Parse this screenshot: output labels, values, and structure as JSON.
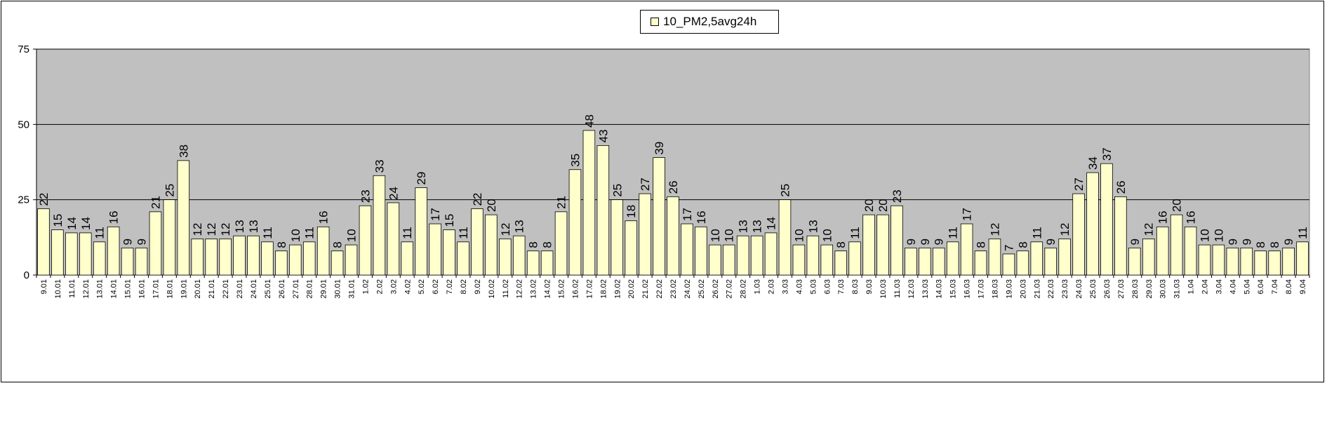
{
  "chart_data": {
    "type": "bar",
    "title": "",
    "xlabel": "",
    "ylabel": "",
    "ylim": [
      0,
      75
    ],
    "yticks": [
      0,
      25,
      50,
      75
    ],
    "grid": true,
    "legend": "top-center",
    "colors": {
      "bar_fill": "#FFFFCC",
      "bar_stroke": "#000000",
      "plot_bg": "#C0C0C0",
      "gridline": "#000000"
    },
    "series": [
      {
        "name": "10_PM2,5avg24h",
        "values": [
          22,
          15,
          14,
          14,
          11,
          16,
          9,
          9,
          21,
          25,
          38,
          12,
          12,
          12,
          13,
          13,
          11,
          8,
          10,
          11,
          16,
          8,
          10,
          23,
          33,
          24,
          11,
          29,
          17,
          15,
          11,
          22,
          20,
          12,
          13,
          8,
          8,
          21,
          35,
          48,
          43,
          25,
          18,
          27,
          39,
          26,
          17,
          16,
          10,
          10,
          13,
          13,
          14,
          25,
          10,
          13,
          10,
          8,
          11,
          20,
          20,
          23,
          9,
          9,
          9,
          11,
          17,
          8,
          12,
          7,
          8,
          11,
          9,
          12,
          27,
          34,
          37,
          26,
          9,
          12,
          16,
          20,
          16,
          10,
          10,
          9,
          9,
          8,
          8,
          9,
          11
        ]
      }
    ],
    "categories": [
      "9.01",
      "10.01",
      "11.01",
      "12.01",
      "13.01",
      "14.01",
      "15.01",
      "16.01",
      "17.01",
      "18.01",
      "19.01",
      "20.01",
      "21.01",
      "22.01",
      "23.01",
      "24.01",
      "25.01",
      "26.01",
      "27.01",
      "28.01",
      "29.01",
      "30.01",
      "31.01",
      "1.02",
      "2.02",
      "3.02",
      "4.02",
      "5.02",
      "6.02",
      "7.02",
      "8.02",
      "9.02",
      "10.02",
      "11.02",
      "12.02",
      "13.02",
      "14.02",
      "15.02",
      "16.02",
      "17.02",
      "18.02",
      "19.02",
      "20.02",
      "21.02",
      "22.02",
      "23.02",
      "24.02",
      "25.02",
      "26.02",
      "27.02",
      "28.02",
      "1.03",
      "2.03",
      "3.03",
      "4.03",
      "5.03",
      "6.03",
      "7.03",
      "8.03",
      "9.03",
      "10.03",
      "11.03",
      "12.03",
      "13.03",
      "14.03",
      "15.03",
      "16.03",
      "17.03",
      "18.03",
      "19.03",
      "20.03",
      "21.03",
      "22.03",
      "23.03",
      "24.03",
      "25.03",
      "26.03",
      "27.03",
      "28.03",
      "29.03",
      "30.03",
      "31.03",
      "1.04",
      "2.04",
      "3.04",
      "4.04",
      "5.04",
      "6.04",
      "7.04",
      "8.04",
      "9.04"
    ]
  }
}
